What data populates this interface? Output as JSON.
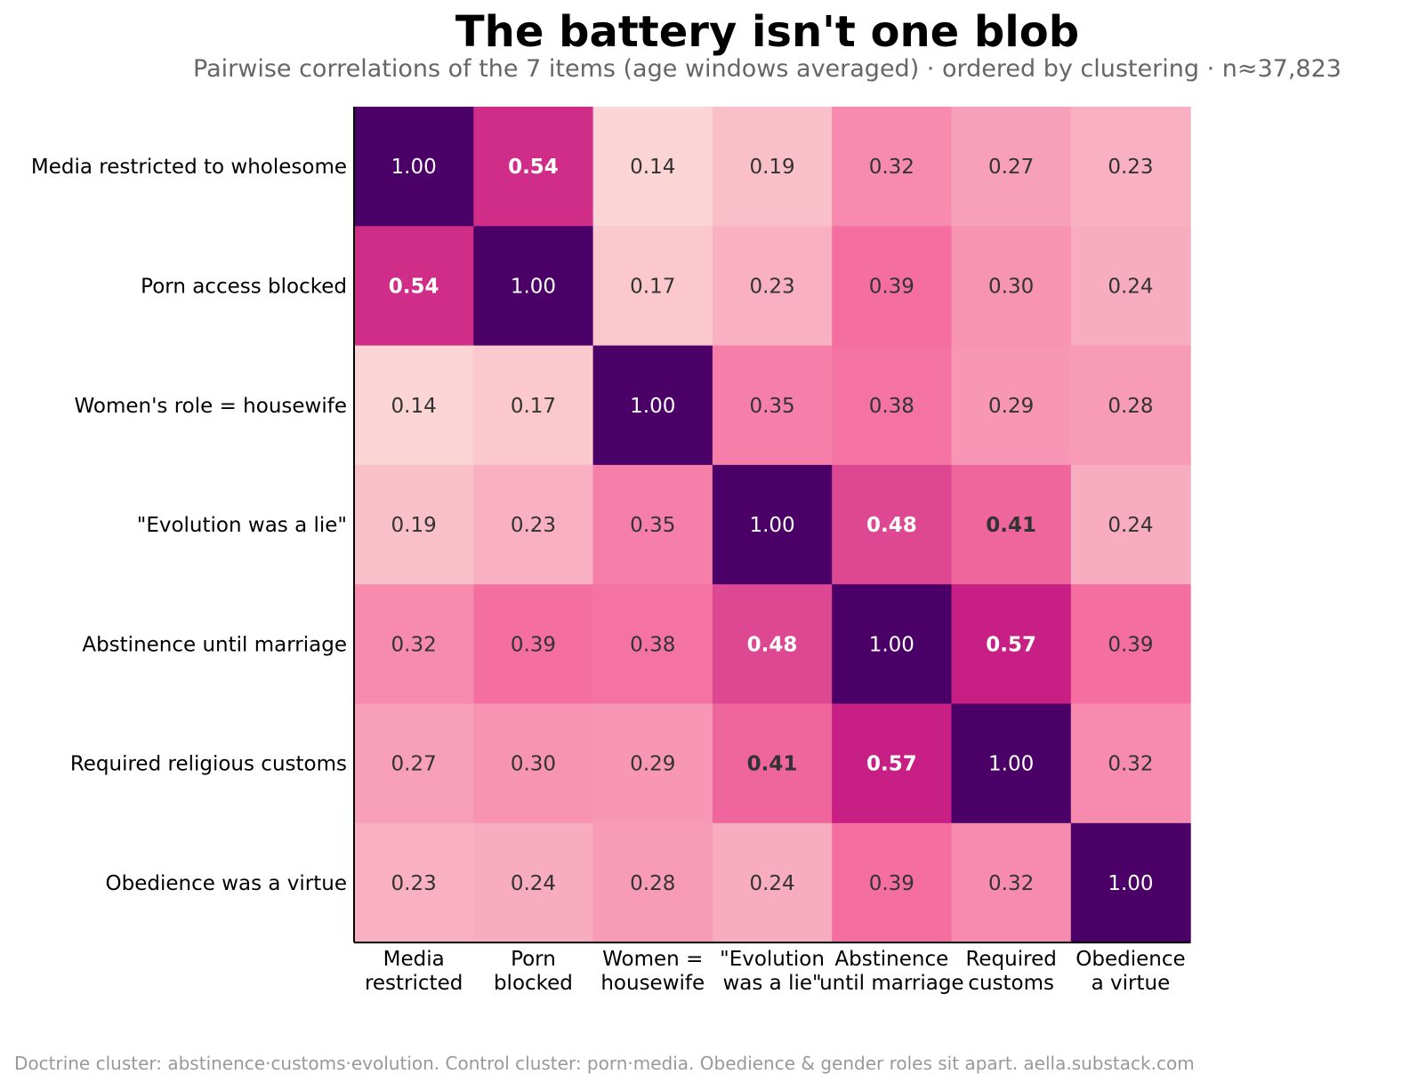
{
  "title": "The battery isn't one blob",
  "subtitle": "Pairwise correlations of the 7 items (age windows averaged) · ordered by clustering · n≈37,823",
  "footer": "Doctrine cluster: abstinence·customs·evolution. Control cluster: porn·media. Obedience & gender roles sit apart. aella.substack.com",
  "colors": {
    "low": "#fcdcd9",
    "mid": "#f46fa0",
    "high": "#c0127f",
    "diagonal": "#4a0066",
    "text_dark": "#333333",
    "text_light": "#ffffff"
  },
  "chart_data": {
    "type": "heatmap",
    "title": "The battery isn't one blob",
    "subtitle": "Pairwise correlations of the 7 items (age windows averaged) · ordered by clustering · n≈37,823",
    "row_labels": [
      "Media restricted to wholesome",
      "Porn access blocked",
      "Women's role = housewife",
      "\"Evolution was a lie\"",
      "Abstinence until marriage",
      "Required religious customs",
      "Obedience was a virtue"
    ],
    "col_labels": [
      [
        "Media",
        "restricted"
      ],
      [
        "Porn",
        "blocked"
      ],
      [
        "Women =",
        "housewife"
      ],
      [
        "\"Evolution",
        "was a lie\""
      ],
      [
        "Abstinence",
        "until marriage"
      ],
      [
        "Required",
        "customs"
      ],
      [
        "Obedience",
        "a virtue"
      ]
    ],
    "values": [
      [
        1.0,
        0.54,
        0.14,
        0.19,
        0.32,
        0.27,
        0.23
      ],
      [
        0.54,
        1.0,
        0.17,
        0.23,
        0.39,
        0.3,
        0.24
      ],
      [
        0.14,
        0.17,
        1.0,
        0.35,
        0.38,
        0.29,
        0.28
      ],
      [
        0.19,
        0.23,
        0.35,
        1.0,
        0.48,
        0.41,
        0.24
      ],
      [
        0.32,
        0.39,
        0.38,
        0.48,
        1.0,
        0.57,
        0.39
      ],
      [
        0.27,
        0.3,
        0.29,
        0.41,
        0.57,
        1.0,
        0.32
      ],
      [
        0.23,
        0.24,
        0.28,
        0.24,
        0.39,
        0.32,
        1.0
      ]
    ],
    "bold_threshold": 0.4,
    "grid": false
  }
}
